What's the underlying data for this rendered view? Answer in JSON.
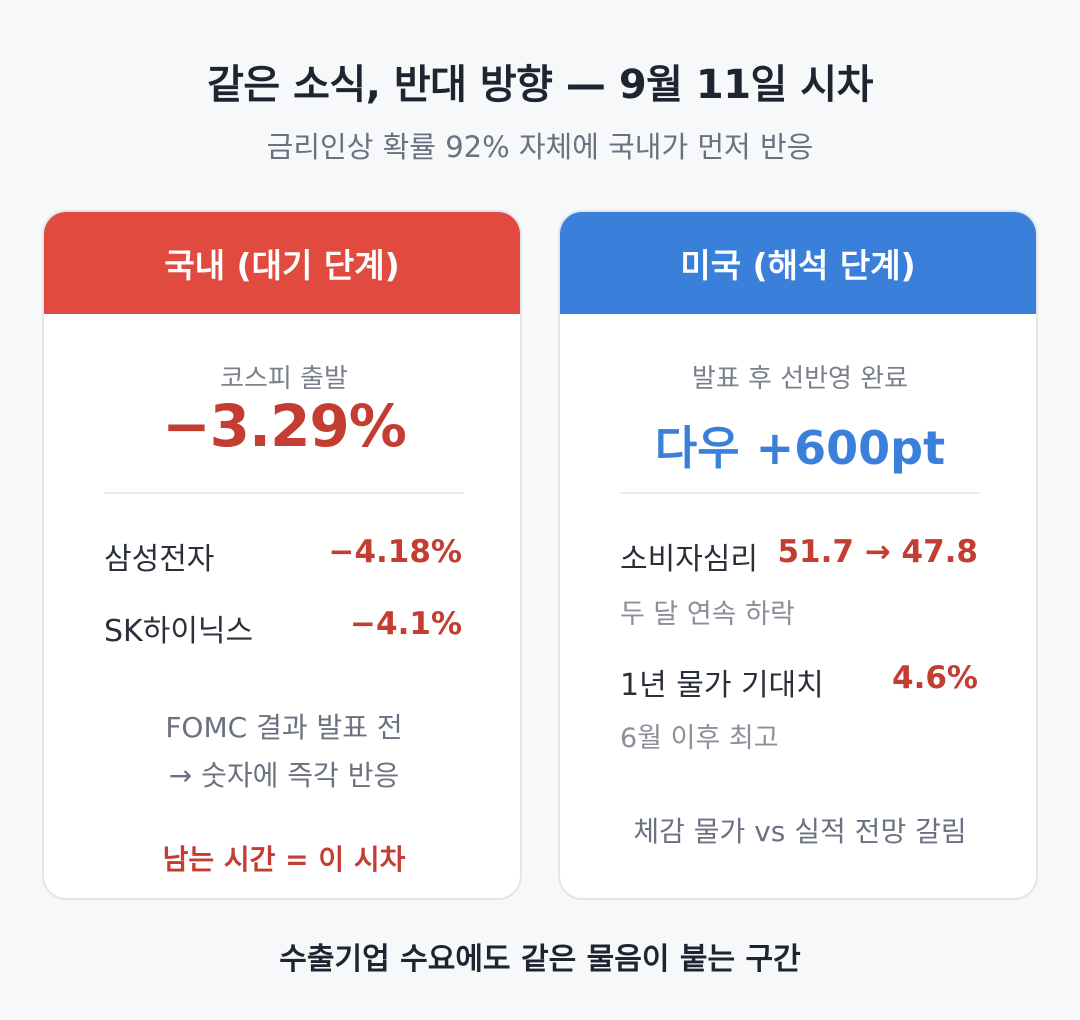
{
  "title": "같은 소식, 반대 방향 — 9월 11일 시차",
  "subtitle": "금리인상 확률 92% 자체에 국내가 먼저 반응",
  "left_card": {
    "header": "국내 (대기 단계)",
    "kospi_label": "코스피 출발",
    "kospi_value": "−3.29%",
    "rows": [
      {
        "label": "삼성전자",
        "value": "−4.18%"
      },
      {
        "label": "SK하이닉스",
        "value": "−4.1%"
      }
    ],
    "note_line1": "FOMC 결과 발표 전",
    "note_line2": "→ 숫자에 즉각 반응",
    "accent": "남는 시간 = 이 시차"
  },
  "right_card": {
    "header": "미국 (해석 단계)",
    "top_label": "발표 후 선반영 완료",
    "top_value": "다우 +600pt",
    "consumer_label": "소비자심리",
    "consumer_value": "51.7 → 47.8",
    "consumer_sub": "두 달 연속 하락",
    "inflation_label": "1년 물가 기대치",
    "inflation_value": "4.6%",
    "inflation_sub": "6월 이후 최고",
    "note": "체감 물가 vs 실적 전망 갈림"
  },
  "footer": "수출기업 수요에도 같은 물음이 붙는 구간",
  "colors": {
    "red_header": "#e04a3f",
    "blue_header": "#3a7fd9",
    "red_text": "#c33d32"
  }
}
